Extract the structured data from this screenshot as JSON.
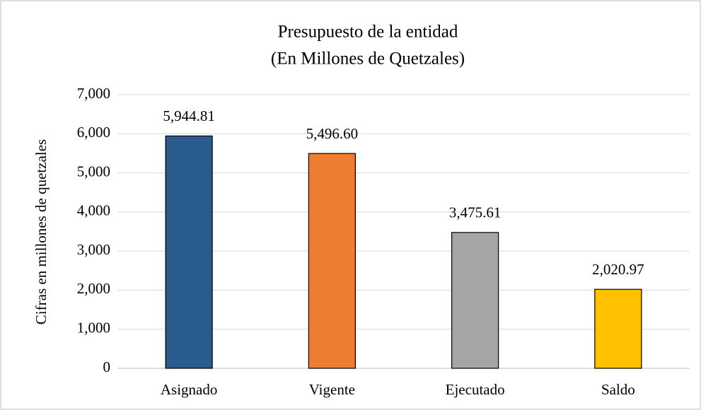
{
  "chart_data": {
    "type": "bar",
    "title": "Presupuesto de la entidad",
    "subtitle": "(En Millones de Quetzales)",
    "y_label": "Cifras en millones de quetzales",
    "categories": [
      "Asignado",
      "Vigente",
      "Ejecutado",
      "Saldo"
    ],
    "values": [
      5944.81,
      5496.6,
      3475.61,
      2020.97
    ],
    "value_labels": [
      "5,944.81",
      "5,496.60",
      "3,475.61",
      "2,020.97"
    ],
    "colors": [
      "#2a5b8e",
      "#ed7d31",
      "#a5a5a5",
      "#ffc000"
    ],
    "ylim": [
      0,
      7000
    ],
    "yticks": [
      0,
      {
        "value": 1000,
        "label": "1,000"
      },
      {
        "value": 2000,
        "label": "2,000"
      },
      {
        "value": 3000,
        "label": "3,000"
      },
      {
        "value": 4000,
        "label": "4,000"
      },
      {
        "value": 5000,
        "label": "5,000"
      },
      {
        "value": 6000,
        "label": "6,000"
      },
      {
        "value": 7000,
        "label": "7,000"
      }
    ],
    "grid": true
  }
}
